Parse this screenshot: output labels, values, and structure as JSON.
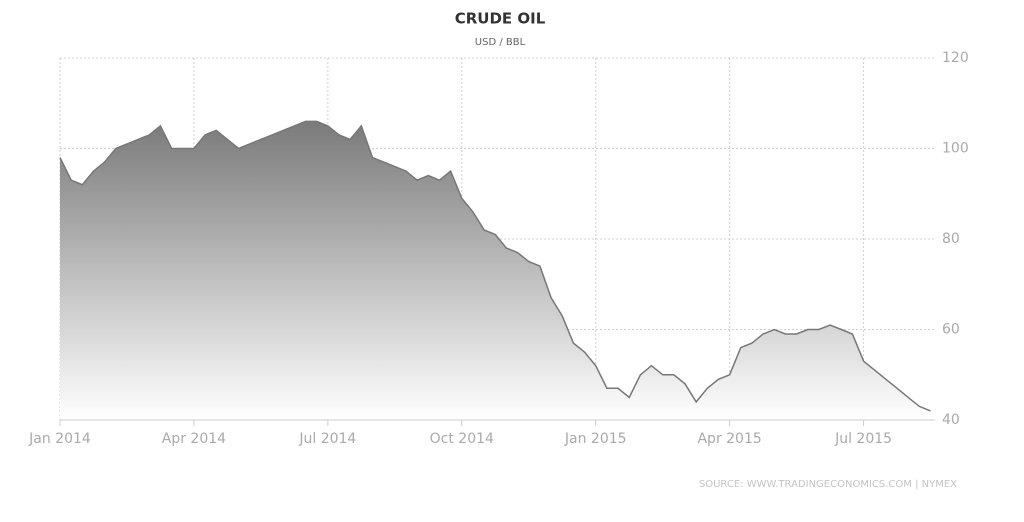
{
  "chart_data": {
    "type": "area",
    "title": "CRUDE OIL",
    "subtitle": "USD / BBL",
    "source": "SOURCE: WWW.TRADINGECONOMICS.COM | NYMEX",
    "color": "#777777",
    "x": [
      0,
      0.25,
      0.5,
      0.75,
      1,
      1.25,
      1.5,
      1.75,
      2,
      2.25,
      2.5,
      2.75,
      3,
      3.25,
      3.5,
      3.75,
      4,
      4.25,
      4.5,
      4.75,
      5,
      5.25,
      5.5,
      5.75,
      6,
      6.25,
      6.5,
      6.75,
      7,
      7.25,
      7.5,
      7.75,
      8,
      8.25,
      8.5,
      8.75,
      9,
      9.25,
      9.5,
      9.75,
      10,
      10.25,
      10.5,
      10.75,
      11,
      11.25,
      11.5,
      11.75,
      12,
      12.25,
      12.5,
      12.75,
      13,
      13.25,
      13.5,
      13.75,
      14,
      14.25,
      14.5,
      14.75,
      15,
      15.25,
      15.5,
      15.75,
      16,
      16.25,
      16.5,
      16.75,
      17,
      17.25,
      17.5,
      17.75,
      18,
      18.25,
      18.5,
      18.75,
      19,
      19.25,
      19.5
    ],
    "values": [
      98,
      93,
      92,
      95,
      97,
      100,
      101,
      102,
      103,
      105,
      100,
      100,
      100,
      103,
      104,
      102,
      100,
      101,
      102,
      103,
      104,
      105,
      106,
      106,
      105,
      103,
      102,
      105,
      98,
      97,
      96,
      95,
      93,
      94,
      93,
      95,
      89,
      86,
      82,
      81,
      78,
      77,
      75,
      74,
      67,
      63,
      57,
      55,
      52,
      47,
      47,
      45,
      50,
      52,
      50,
      50,
      48,
      44,
      47,
      49,
      50,
      56,
      57,
      59,
      60,
      59,
      59,
      60,
      60,
      61,
      60,
      59,
      53,
      51,
      49,
      47,
      45,
      43,
      42
    ],
    "xlim": [
      0,
      19.6
    ],
    "xticks": [
      {
        "value": 0,
        "label": "Jan 2014"
      },
      {
        "value": 3,
        "label": "Apr 2014"
      },
      {
        "value": 6,
        "label": "Jul 2014"
      },
      {
        "value": 9,
        "label": "Oct 2014"
      },
      {
        "value": 12,
        "label": "Jan 2015"
      },
      {
        "value": 15,
        "label": "Apr 2015"
      },
      {
        "value": 18,
        "label": "Jul 2015"
      }
    ],
    "ylim": [
      40,
      120
    ],
    "yticks": [
      40,
      60,
      80,
      100,
      120
    ],
    "grid": true
  }
}
